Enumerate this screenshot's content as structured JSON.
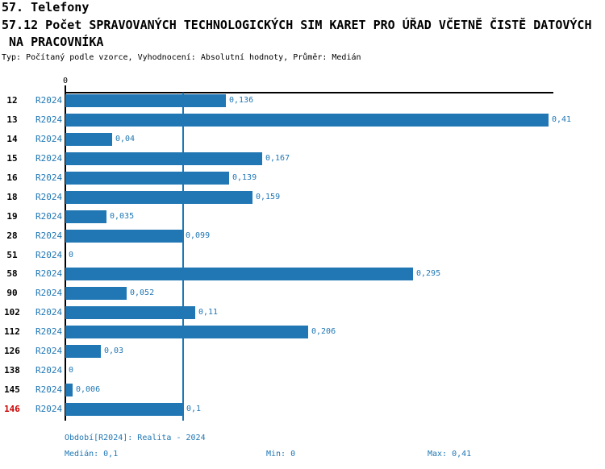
{
  "header": {
    "line1": "57. Telefony",
    "line2": "57.12 Počet SPRAVOVANÝCH TECHNOLOGICKÝCH SIM KARET PRO ÚŘAD VČETNĚ ČISTĚ DATOVÝCH",
    "line3": " NA PRACOVNÍKA",
    "meta": "Typ: Počítaný podle vzorce, Vyhodnocení: Absolutní hodnoty, Průměr: Medián"
  },
  "chart_data": {
    "type": "bar",
    "orientation": "horizontal",
    "title": "57.12 Počet SPRAVOVANÝCH TECHNOLOGICKÝCH SIM KARET PRO ÚŘAD VČETNĚ ČISTĚ DATOVÝCH NA PRACOVNÍKA",
    "series_label": "R2024",
    "axis_zero_label": "0",
    "categories": [
      "12",
      "13",
      "14",
      "15",
      "16",
      "18",
      "19",
      "28",
      "51",
      "58",
      "90",
      "102",
      "112",
      "126",
      "138",
      "145",
      "146"
    ],
    "values": [
      0.136,
      0.41,
      0.04,
      0.167,
      0.139,
      0.159,
      0.035,
      0.099,
      0,
      0.295,
      0.052,
      0.11,
      0.206,
      0.03,
      0,
      0.006,
      0.1
    ],
    "value_labels": [
      "0,136",
      "0,41",
      "0,04",
      "0,167",
      "0,139",
      "0,159",
      "0,035",
      "0,099",
      "0",
      "0,295",
      "0,052",
      "0,11",
      "0,206",
      "0,03",
      "0",
      "0,006",
      "0,1"
    ],
    "highlighted_category": "146",
    "median_line_value": 0.1,
    "xlim": [
      0,
      0.41
    ],
    "grid": false,
    "legend": false,
    "bar_color": "#2077b4",
    "highlight_color": "#cc0000",
    "xlabel": "",
    "ylabel": ""
  },
  "footer": {
    "period": "Období[R2024]: Realita - 2024",
    "median": "Medián: 0,1",
    "min": "Min: 0",
    "max": "Max: 0,41"
  }
}
